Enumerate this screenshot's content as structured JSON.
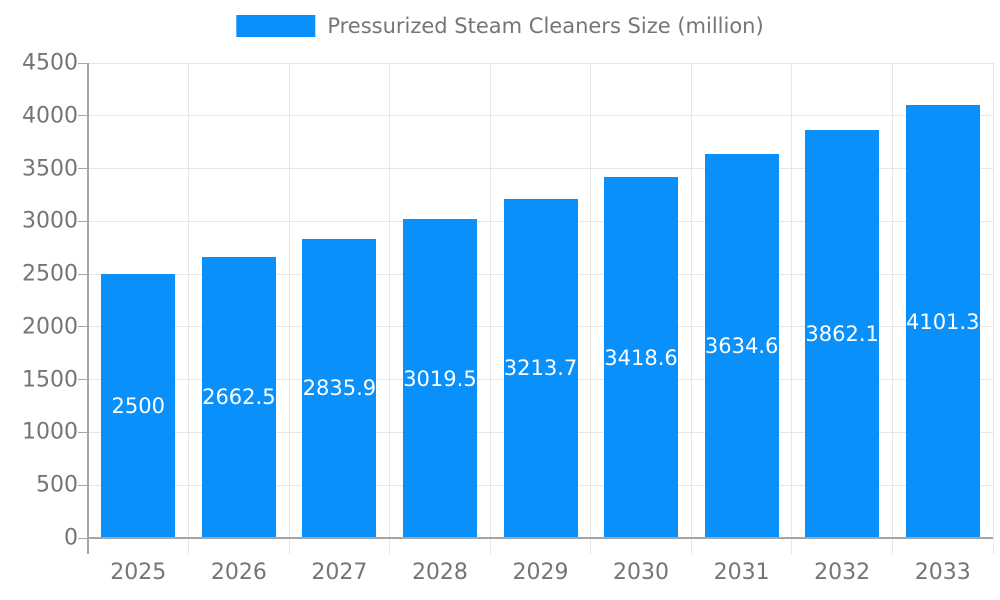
{
  "legend": {
    "label": "Pressurized Steam Cleaners Size (million)"
  },
  "chart_data": {
    "type": "bar",
    "title": "Pressurized Steam Cleaners Size (million)",
    "series_name": "Pressurized Steam Cleaners Size (million)",
    "categories": [
      "2025",
      "2026",
      "2027",
      "2028",
      "2029",
      "2030",
      "2031",
      "2032",
      "2033"
    ],
    "values": [
      2500,
      2662.5,
      2835.9,
      3019.5,
      3213.7,
      3418.6,
      3634.6,
      3862.1,
      4101.3
    ],
    "value_labels": [
      "2500",
      "2662.5",
      "2835.9",
      "3019.5",
      "3213.7",
      "3418.6",
      "3634.6",
      "3862.1",
      "4101.3"
    ],
    "xlabel": "",
    "ylabel": "",
    "ylim": [
      0,
      4500
    ],
    "ytick_step": 500,
    "ytick_labels": [
      "0",
      "500",
      "1000",
      "1500",
      "2000",
      "2500",
      "3000",
      "3500",
      "4000",
      "4500"
    ],
    "grid": true,
    "legend_position": "top-center",
    "value_label_position": "inside-middle",
    "colors": {
      "bar": "#0a90fa",
      "value_label": "#ffffff",
      "grid": "#e6e6e6",
      "axis": "#a6a6a6",
      "tick_label": "#757575",
      "legend_text": "#757575",
      "background": "#ffffff"
    }
  }
}
